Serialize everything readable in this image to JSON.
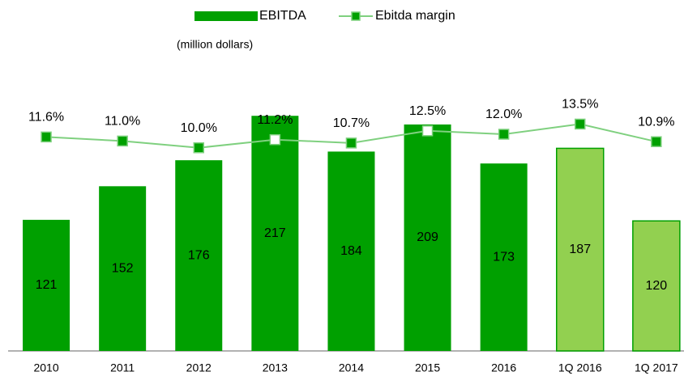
{
  "chart_data": {
    "type": "bar_line",
    "subtitle": "(million dollars)",
    "categories": [
      "2010",
      "2011",
      "2012",
      "2013",
      "2014",
      "2015",
      "2016",
      "1Q 2016",
      "1Q 2017"
    ],
    "series": [
      {
        "name": "EBITDA",
        "type": "bar",
        "color": "#00a000",
        "colors": [
          "#00a000",
          "#00a000",
          "#00a000",
          "#00a000",
          "#00a000",
          "#00a000",
          "#00a000",
          "#92d050",
          "#92d050"
        ],
        "values": [
          121,
          152,
          176,
          217,
          184,
          209,
          173,
          187,
          120
        ]
      },
      {
        "name": "Ebitda margin",
        "type": "line",
        "axis": "y2",
        "color": "#7fd07f",
        "marker_color": "#00a000",
        "marker_colors": [
          "#00a000",
          "#00a000",
          "#00a000",
          "#ffffff",
          "#00a000",
          "#ffffff",
          "#00a000",
          "#00a000",
          "#00a000"
        ],
        "values": [
          11.6,
          11.0,
          10.0,
          11.2,
          10.7,
          12.5,
          12.0,
          13.5,
          10.9
        ],
        "value_labels": [
          "11.6%",
          "11.0%",
          "10.0%",
          "11.2%",
          "10.7%",
          "12.5%",
          "12.0%",
          "13.5%",
          "10.9%"
        ]
      }
    ],
    "ylim": [
      0,
      250
    ],
    "y2lim": [
      -20,
      20
    ],
    "legend": "top"
  }
}
